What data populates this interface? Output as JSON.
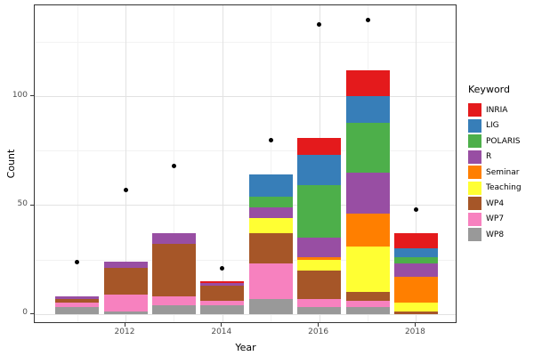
{
  "chart_data": {
    "type": "bar",
    "stacked": true,
    "title": "",
    "xlabel": "Year",
    "ylabel": "Count",
    "categories": [
      2011,
      2012,
      2013,
      2014,
      2015,
      2016,
      2017,
      2018
    ],
    "stack_order": "bottom-to-top",
    "series": [
      {
        "name": "WP8",
        "color": "#999999",
        "values": [
          3,
          1,
          4,
          4,
          7,
          3,
          3,
          0
        ]
      },
      {
        "name": "WP7",
        "color": "#F781BF",
        "values": [
          2,
          8,
          4,
          2,
          16,
          4,
          3,
          0
        ]
      },
      {
        "name": "WP4",
        "color": "#A65628",
        "values": [
          2,
          12,
          24,
          7,
          14,
          13,
          4,
          1
        ]
      },
      {
        "name": "Teaching",
        "color": "#FFFF33",
        "values": [
          0,
          0,
          0,
          0,
          7,
          5,
          21,
          4
        ]
      },
      {
        "name": "Seminar",
        "color": "#FF7F00",
        "values": [
          0,
          0,
          0,
          0,
          0,
          1,
          15,
          12
        ]
      },
      {
        "name": "R",
        "color": "#984EA3",
        "values": [
          1,
          3,
          5,
          1,
          5,
          9,
          19,
          6
        ]
      },
      {
        "name": "POLARIS",
        "color": "#4DAF4A",
        "values": [
          0,
          0,
          0,
          0,
          5,
          24,
          23,
          3
        ]
      },
      {
        "name": "LIG",
        "color": "#377EB8",
        "values": [
          0,
          0,
          0,
          0,
          10,
          14,
          12,
          4
        ]
      },
      {
        "name": "INRIA",
        "color": "#E41A1C",
        "values": [
          0,
          0,
          0,
          1,
          0,
          8,
          12,
          7
        ]
      }
    ],
    "bar_totals": [
      8,
      24,
      37,
      15,
      64,
      81,
      112,
      37
    ],
    "overlay_points": {
      "name": "total-points",
      "marker": "black-dot",
      "values": [
        24,
        57,
        68,
        21,
        80,
        133,
        135,
        48
      ]
    },
    "x_ticks": [
      2012,
      2014,
      2016,
      2018
    ],
    "x_tick_labels": [
      "2012",
      "2014",
      "2016",
      "2018"
    ],
    "x_minor": [
      2011,
      2013,
      2015,
      2017
    ],
    "y_ticks": [
      0,
      50,
      100
    ],
    "y_tick_labels": [
      "0",
      "50",
      "100"
    ],
    "y_minor": [
      25,
      75,
      125
    ],
    "ylim": [
      -6.8,
      141.9
    ],
    "grid": true,
    "legend_position": "right"
  },
  "legend": {
    "title": "Keyword",
    "items": [
      {
        "label": "INRIA",
        "color": "#E41A1C"
      },
      {
        "label": "LIG",
        "color": "#377EB8"
      },
      {
        "label": "POLARIS",
        "color": "#4DAF4A"
      },
      {
        "label": "R",
        "color": "#984EA3"
      },
      {
        "label": "Seminar",
        "color": "#FF7F00"
      },
      {
        "label": "Teaching",
        "color": "#FFFF33"
      },
      {
        "label": "WP4",
        "color": "#A65628"
      },
      {
        "label": "WP7",
        "color": "#F781BF"
      },
      {
        "label": "WP8",
        "color": "#999999"
      }
    ]
  },
  "axes": {
    "x_title": "Year",
    "y_title": "Count"
  },
  "colors": {
    "panel_border": "#333333",
    "grid_major": "#e2e2e2",
    "grid_minor": "#f2f2f2",
    "tick_text": "#4d4d4d"
  }
}
